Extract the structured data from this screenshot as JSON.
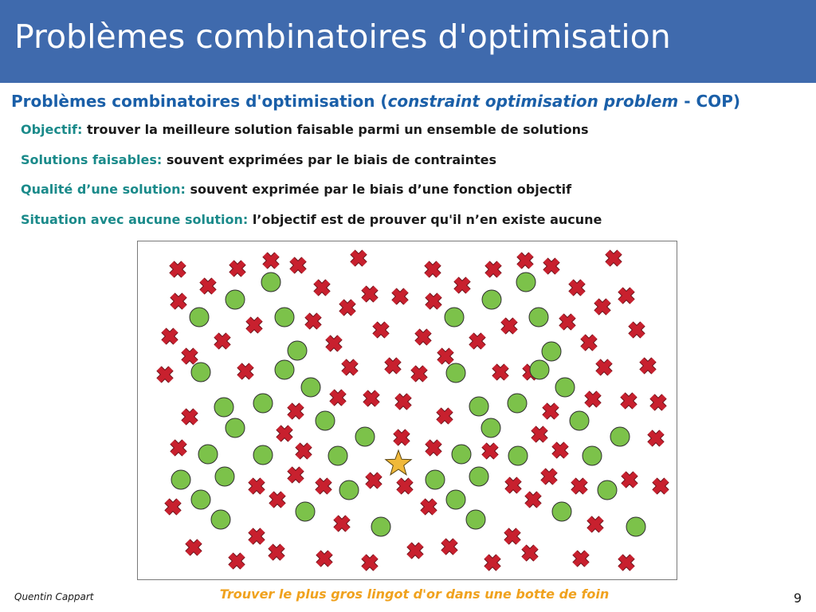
{
  "slide": {
    "title": "Problèmes combinatoires d'optimisation",
    "subtitle_prefix": "Problèmes combinatoires d'optimisation (",
    "subtitle_em": "constraint optimisation problem",
    "subtitle_suffix": " - COP)",
    "bullets": [
      {
        "key": "Objectif:",
        "text": " trouver la meilleure solution faisable parmi un ensemble de solutions"
      },
      {
        "key": "Solutions faisables:",
        "text": " souvent exprimées par le biais de contraintes"
      },
      {
        "key": "Qualité d’une solution:",
        "text": " souvent exprimée par le biais d’une fonction objectif"
      },
      {
        "key": "Situation avec aucune solution:",
        "text": " l’objectif est de prouver qu'il n’en existe aucune"
      }
    ],
    "caption": "Trouver le plus gros lingot d'or dans une botte de foin",
    "author": "Quentin Cappart",
    "page_number": "9"
  },
  "colors": {
    "header_bg": "#3f6aad",
    "subtitle": "#1a5fa8",
    "key": "#1a8a8a",
    "caption": "#f0a21e",
    "feasible": "#7cc24a",
    "infeasible": "#c8202e",
    "optimum": "#f0b93a"
  },
  "icons": {
    "feasible": "green-circle",
    "infeasible": "red-cross",
    "optimum": "gold-star"
  }
}
